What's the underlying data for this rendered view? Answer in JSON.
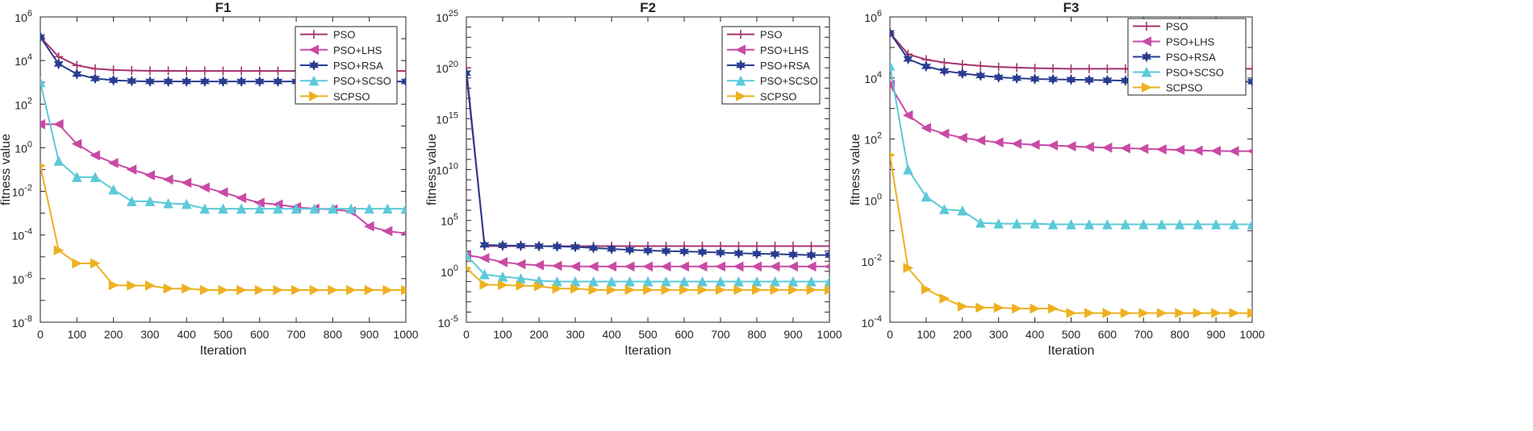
{
  "figure": {
    "background": "#ffffff"
  },
  "series_styles": [
    {
      "name": "PSO",
      "color": "#A4346E",
      "marker": "plus"
    },
    {
      "name": "PSO+LHS",
      "color": "#C94AA5",
      "marker": "triangle-left"
    },
    {
      "name": "PSO+RSA",
      "color": "#293C8F",
      "marker": "hexagram"
    },
    {
      "name": "PSO+SCSO",
      "color": "#5CC9D9",
      "marker": "triangle-up"
    },
    {
      "name": "SCPSO",
      "color": "#EDB120",
      "marker": "triangle-right"
    }
  ],
  "chart_data": [
    {
      "type": "line",
      "title": "F1",
      "xlabel": "Iteration",
      "ylabel": "fitness value",
      "yscale": "log",
      "xlim": [
        0,
        1000
      ],
      "ylim_exp": [
        -8,
        6
      ],
      "xticks": [
        0,
        100,
        200,
        300,
        400,
        500,
        600,
        700,
        800,
        900,
        1000
      ],
      "yticks_exp": [
        -8,
        -6,
        -4,
        -2,
        0,
        2,
        4,
        6
      ],
      "legend_position": "top-right",
      "x": [
        0,
        50,
        100,
        150,
        200,
        250,
        300,
        350,
        400,
        450,
        500,
        550,
        600,
        650,
        700,
        750,
        800,
        850,
        900,
        950,
        1000
      ],
      "series": [
        {
          "name": "PSO",
          "values": [
            120000,
            15000,
            6000,
            4200,
            3700,
            3500,
            3400,
            3350,
            3300,
            3300,
            3300,
            3300,
            3300,
            3300,
            3300,
            3300,
            3300,
            3300,
            3300,
            3300,
            3300
          ]
        },
        {
          "name": "PSO+LHS",
          "values": [
            12,
            12,
            1.5,
            0.45,
            0.2,
            0.1,
            0.055,
            0.035,
            0.025,
            0.015,
            0.009,
            0.005,
            0.003,
            0.0025,
            0.0019,
            0.0016,
            0.0015,
            0.0012,
            0.00025,
            0.00015,
            0.00012
          ]
        },
        {
          "name": "PSO+RSA",
          "values": [
            120000,
            7000,
            2400,
            1500,
            1250,
            1150,
            1100,
            1100,
            1100,
            1100,
            1100,
            1100,
            1100,
            1100,
            1100,
            1100,
            1100,
            1100,
            1100,
            1100,
            1100
          ]
        },
        {
          "name": "PSO+SCSO",
          "values": [
            1000,
            0.25,
            0.045,
            0.045,
            0.012,
            0.0035,
            0.0035,
            0.0028,
            0.0026,
            0.0016,
            0.0016,
            0.0016,
            0.0016,
            0.0016,
            0.0016,
            0.0016,
            0.0016,
            0.0016,
            0.0016,
            0.0016,
            0.0016
          ]
        },
        {
          "name": "SCPSO",
          "values": [
            0.15,
            2e-05,
            5e-06,
            5e-06,
            5e-07,
            4.8e-07,
            4.8e-07,
            3.5e-07,
            3.5e-07,
            3e-07,
            3e-07,
            3e-07,
            3e-07,
            3e-07,
            3e-07,
            3e-07,
            3e-07,
            3e-07,
            3e-07,
            3e-07,
            3e-07
          ]
        }
      ]
    },
    {
      "type": "line",
      "title": "F2",
      "xlabel": "Iteration",
      "ylabel": "fitness value",
      "yscale": "log",
      "xlim": [
        0,
        1000
      ],
      "ylim_exp": [
        -5,
        25
      ],
      "xticks": [
        0,
        100,
        200,
        300,
        400,
        500,
        600,
        700,
        800,
        900,
        1000
      ],
      "yticks_exp": [
        -5,
        0,
        5,
        10,
        15,
        20,
        25
      ],
      "legend_position": "top-right",
      "x": [
        0,
        50,
        100,
        150,
        200,
        250,
        300,
        350,
        400,
        450,
        500,
        550,
        600,
        650,
        700,
        750,
        800,
        850,
        900,
        950,
        1000
      ],
      "series": [
        {
          "name": "PSO",
          "values": [
            1e+20,
            300,
            300,
            300,
            300,
            300,
            300,
            300,
            300,
            300,
            300,
            300,
            300,
            300,
            300,
            300,
            300,
            300,
            300,
            300,
            300
          ]
        },
        {
          "name": "PSO+LHS",
          "values": [
            40,
            20,
            8,
            5,
            4,
            3.5,
            3,
            3,
            3,
            3,
            3,
            3,
            3,
            3,
            3,
            3,
            3,
            3,
            3,
            3,
            3
          ]
        },
        {
          "name": "PSO+RSA",
          "values": [
            3e+19,
            400,
            350,
            330,
            300,
            280,
            250,
            200,
            160,
            130,
            110,
            100,
            90,
            80,
            70,
            60,
            55,
            50,
            45,
            40,
            40
          ]
        },
        {
          "name": "PSO+SCSO",
          "values": [
            40,
            0.5,
            0.3,
            0.2,
            0.12,
            0.1,
            0.1,
            0.1,
            0.1,
            0.1,
            0.1,
            0.1,
            0.1,
            0.1,
            0.1,
            0.1,
            0.1,
            0.1,
            0.1,
            0.1,
            0.1
          ]
        },
        {
          "name": "SCPSO",
          "values": [
            2,
            0.05,
            0.045,
            0.04,
            0.035,
            0.02,
            0.02,
            0.015,
            0.015,
            0.015,
            0.015,
            0.015,
            0.015,
            0.015,
            0.015,
            0.015,
            0.015,
            0.015,
            0.015,
            0.015,
            0.015
          ]
        }
      ]
    },
    {
      "type": "line",
      "title": "F3",
      "xlabel": "Iteration",
      "ylabel": "fitness value",
      "yscale": "log",
      "xlim": [
        0,
        1000
      ],
      "ylim_exp": [
        -4,
        6
      ],
      "xticks": [
        0,
        100,
        200,
        300,
        400,
        500,
        600,
        700,
        800,
        900,
        1000
      ],
      "yticks_exp": [
        -4,
        -2,
        0,
        2,
        4,
        6
      ],
      "legend_position": "top-right",
      "x": [
        0,
        50,
        100,
        150,
        200,
        250,
        300,
        350,
        400,
        450,
        500,
        550,
        600,
        650,
        700,
        750,
        800,
        850,
        900,
        950,
        1000
      ],
      "series": [
        {
          "name": "PSO",
          "values": [
            300000,
            60000,
            40000,
            32000,
            28000,
            25000,
            23000,
            22000,
            21000,
            20500,
            20000,
            20000,
            20000,
            20000,
            20000,
            20000,
            20000,
            20000,
            20000,
            20000,
            20000
          ]
        },
        {
          "name": "PSO+LHS",
          "values": [
            6000,
            600,
            230,
            150,
            110,
            90,
            78,
            70,
            65,
            62,
            58,
            55,
            52,
            50,
            48,
            46,
            44,
            42,
            41,
            40,
            40
          ]
        },
        {
          "name": "PSO+RSA",
          "values": [
            300000,
            42000,
            24000,
            17000,
            14000,
            12000,
            10500,
            9800,
            9300,
            9000,
            8800,
            8600,
            8400,
            8200,
            8100,
            8000,
            7900,
            7800,
            7700,
            7600,
            7600
          ]
        },
        {
          "name": "PSO+SCSO",
          "values": [
            25000,
            10,
            1.3,
            0.5,
            0.45,
            0.18,
            0.17,
            0.17,
            0.17,
            0.16,
            0.16,
            0.16,
            0.16,
            0.16,
            0.16,
            0.16,
            0.16,
            0.16,
            0.16,
            0.16,
            0.16
          ]
        },
        {
          "name": "SCPSO",
          "values": [
            30,
            0.006,
            0.0012,
            0.0006,
            0.00033,
            0.0003,
            0.0003,
            0.00028,
            0.00028,
            0.00028,
            0.0002,
            0.0002,
            0.0002,
            0.0002,
            0.0002,
            0.0002,
            0.0002,
            0.0002,
            0.0002,
            0.0002,
            0.0002
          ]
        }
      ]
    }
  ]
}
